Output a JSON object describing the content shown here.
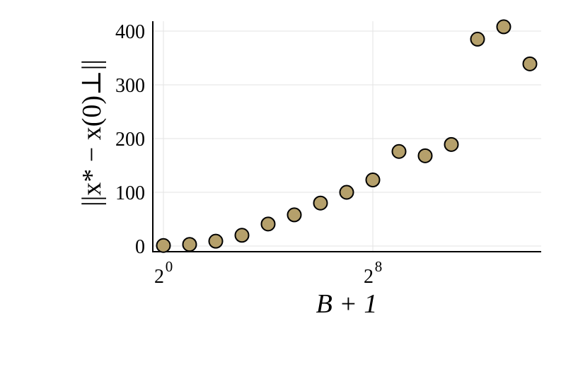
{
  "chart_data": {
    "type": "scatter",
    "title": "",
    "xlabel": "B + 1",
    "ylabel": "||x* − x(0)⊥||",
    "x_scale": "log2",
    "x_ticks": [
      {
        "value": 1,
        "base": "2",
        "exp": "0"
      },
      {
        "value": 256,
        "base": "2",
        "exp": "8"
      }
    ],
    "y_ticks": [
      0,
      100,
      200,
      300,
      400
    ],
    "ylim": [
      -5,
      420
    ],
    "grid": true,
    "legend": "none",
    "marker_color": "#b5a06b",
    "points": [
      {
        "x": 1,
        "y": 1
      },
      {
        "x": 2,
        "y": 3
      },
      {
        "x": 4,
        "y": 9
      },
      {
        "x": 8,
        "y": 20
      },
      {
        "x": 16,
        "y": 41
      },
      {
        "x": 32,
        "y": 58
      },
      {
        "x": 64,
        "y": 80
      },
      {
        "x": 128,
        "y": 100
      },
      {
        "x": 256,
        "y": 123
      },
      {
        "x": 512,
        "y": 176
      },
      {
        "x": 1024,
        "y": 168
      },
      {
        "x": 2048,
        "y": 189
      },
      {
        "x": 4096,
        "y": 385
      },
      {
        "x": 8192,
        "y": 408
      },
      {
        "x": 16384,
        "y": 339
      }
    ]
  }
}
